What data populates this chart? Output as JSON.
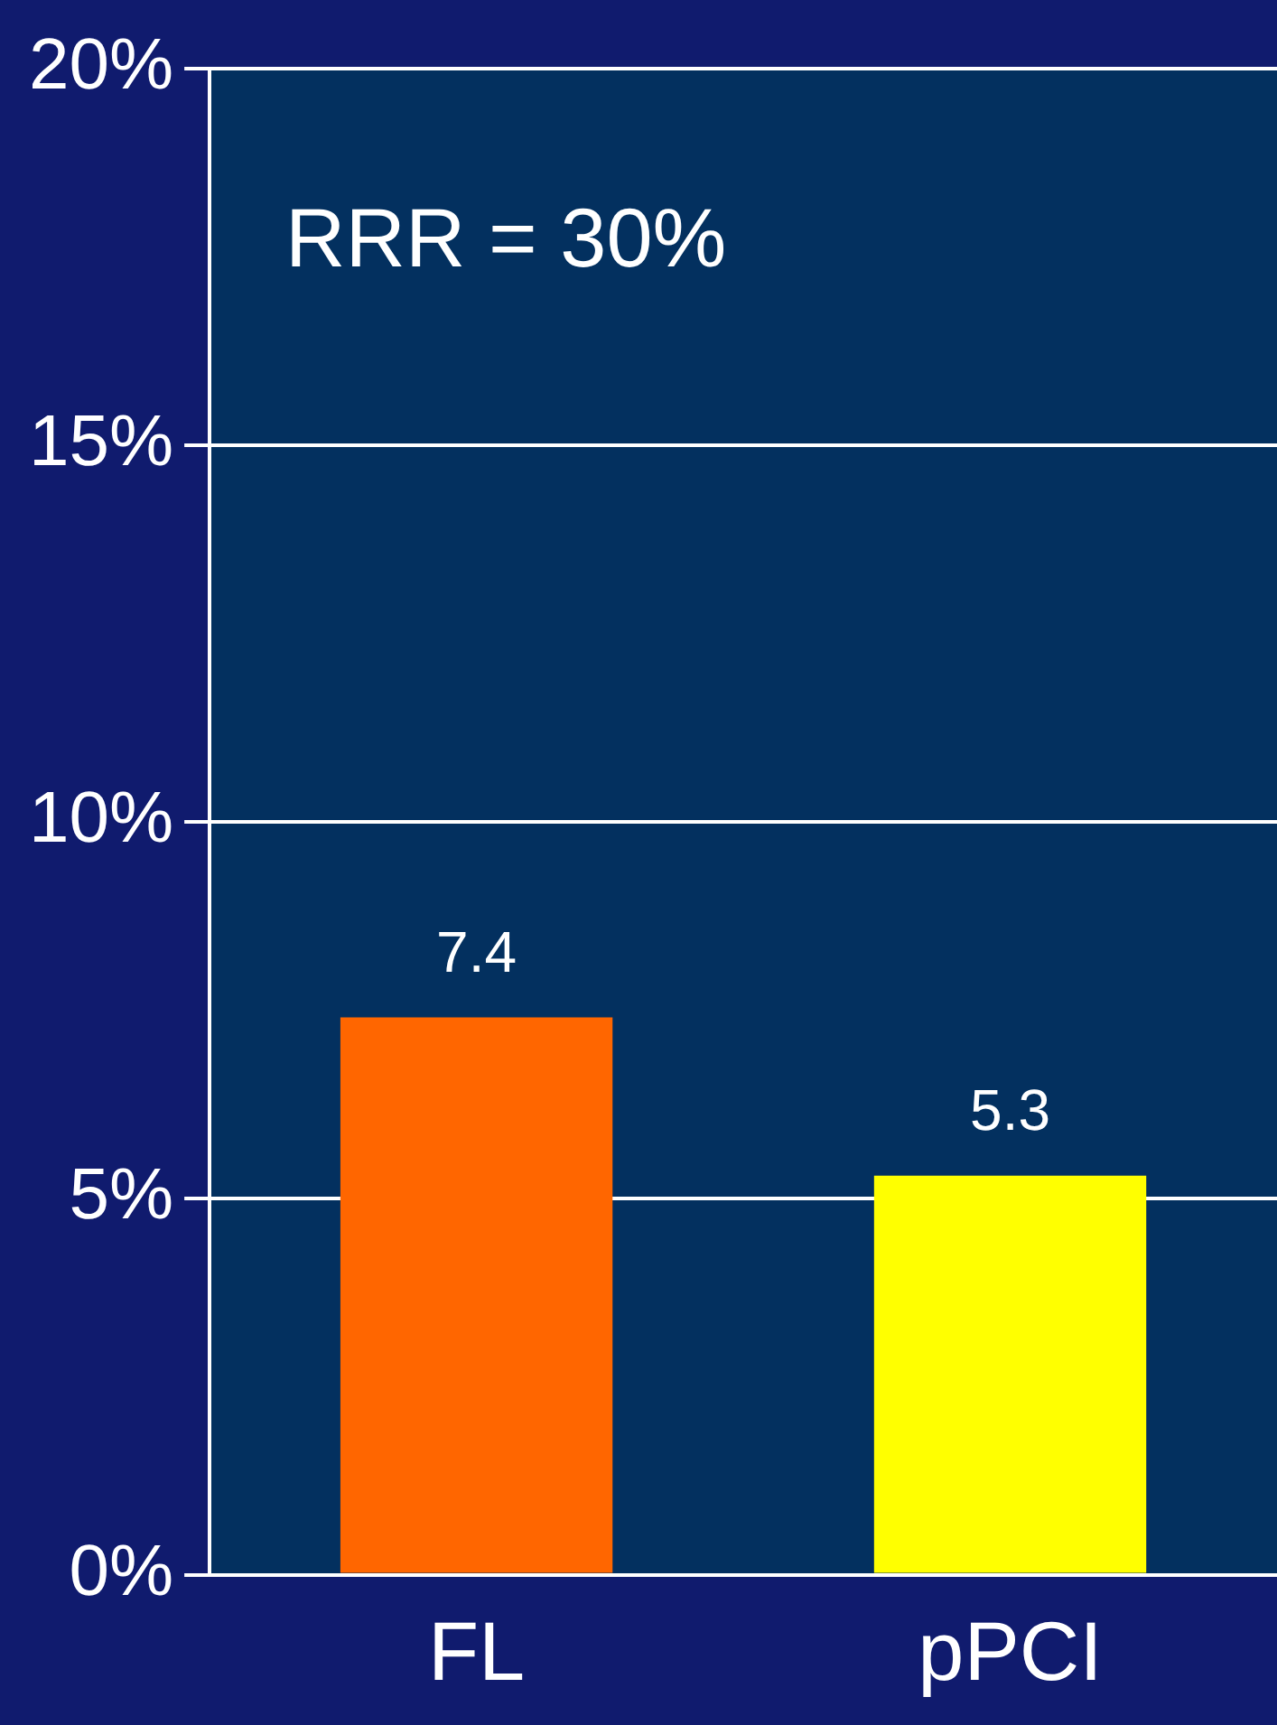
{
  "chart_data": {
    "type": "bar",
    "categories": [
      "FL",
      "pPCI"
    ],
    "values": [
      7.4,
      5.3
    ],
    "colors": [
      "#ff6600",
      "#ffff00"
    ],
    "ylim": [
      0,
      20
    ],
    "yticks": [
      {
        "value": 0,
        "label": "0%"
      },
      {
        "value": 5,
        "label": "5%"
      },
      {
        "value": 10,
        "label": "10%"
      },
      {
        "value": 15,
        "label": "15%"
      },
      {
        "value": 20,
        "label": "20%"
      }
    ],
    "grid": "y",
    "data_labels": true,
    "annotations": [
      "RRR = 30%"
    ]
  }
}
